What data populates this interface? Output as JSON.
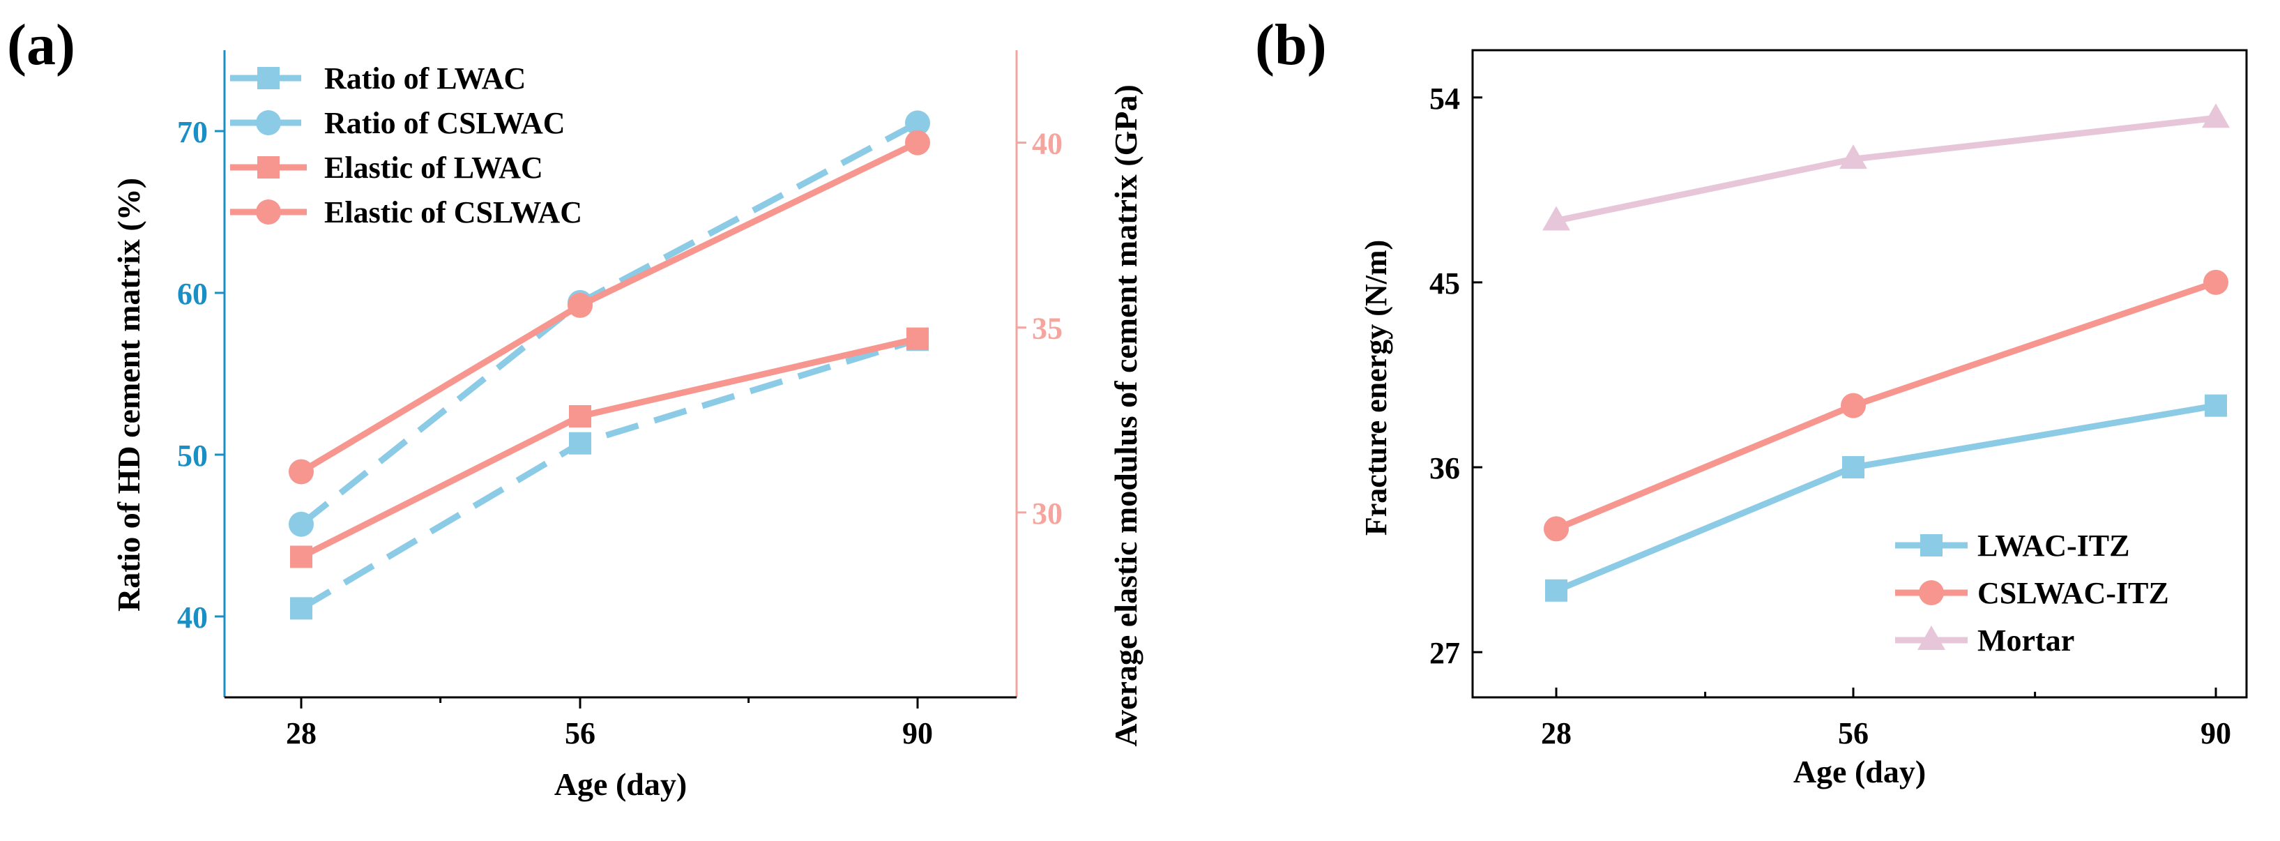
{
  "colors": {
    "blue": "#8ccbe6",
    "blue_axis": "#1a8fc6",
    "red": "#f7968f",
    "red_axis": "#f6a49e",
    "pink": "#e8c6d9"
  },
  "chart_data": [
    {
      "panel_label": "(a)",
      "type": "line",
      "title": "",
      "categories": [
        "28",
        "56",
        "90"
      ],
      "x_minor_ticks": [
        42,
        73
      ],
      "xlabel": "Age (day)",
      "ylabel": "Ratio of HD cement matrix (%)",
      "ylim": [
        35,
        75
      ],
      "yticks": [
        40,
        50,
        60,
        70
      ],
      "y2label": "Average elastic modulus of cement matrix (GPa)",
      "y2lim": [
        25,
        42.5
      ],
      "y2ticks": [
        30,
        35,
        40
      ],
      "legend_position": "top-left",
      "series": [
        {
          "name": "Ratio of LWAC",
          "axis": "left",
          "marker": "square",
          "dash": true,
          "color": "#8ccbe6",
          "values": [
            40.5,
            50.7,
            57.1
          ]
        },
        {
          "name": "Ratio of CSLWAC",
          "axis": "left",
          "marker": "circle",
          "dash": true,
          "color": "#8ccbe6",
          "values": [
            45.7,
            59.4,
            70.5
          ]
        },
        {
          "name": "Elastic of LWAC",
          "axis": "right",
          "marker": "square",
          "dash": false,
          "color": "#f7968f",
          "values": [
            28.8,
            32.6,
            34.7
          ]
        },
        {
          "name": "Elastic of CSLWAC",
          "axis": "right",
          "marker": "circle",
          "dash": false,
          "color": "#f7968f",
          "values": [
            31.1,
            35.6,
            40.0
          ]
        }
      ]
    },
    {
      "panel_label": "(b)",
      "type": "line",
      "title": "",
      "categories": [
        "28",
        "56",
        "90"
      ],
      "x_minor_ticks": [
        42,
        73
      ],
      "xlabel": "Age (day)",
      "ylabel": "Fracture energy (N/m)",
      "ylim": [
        24.8,
        56.3
      ],
      "yticks": [
        27,
        36,
        45,
        54
      ],
      "legend_position": "bottom-right",
      "series": [
        {
          "name": "LWAC-ITZ",
          "marker": "square",
          "color": "#8ccbe6",
          "values": [
            30.0,
            36.0,
            39.0
          ]
        },
        {
          "name": "CSLWAC-ITZ",
          "marker": "circle",
          "color": "#f7968f",
          "values": [
            33.0,
            39.0,
            45.0
          ]
        },
        {
          "name": "Mortar",
          "marker": "triangle",
          "color": "#e8c6d9",
          "values": [
            48.0,
            51.0,
            53.0
          ]
        }
      ]
    }
  ]
}
